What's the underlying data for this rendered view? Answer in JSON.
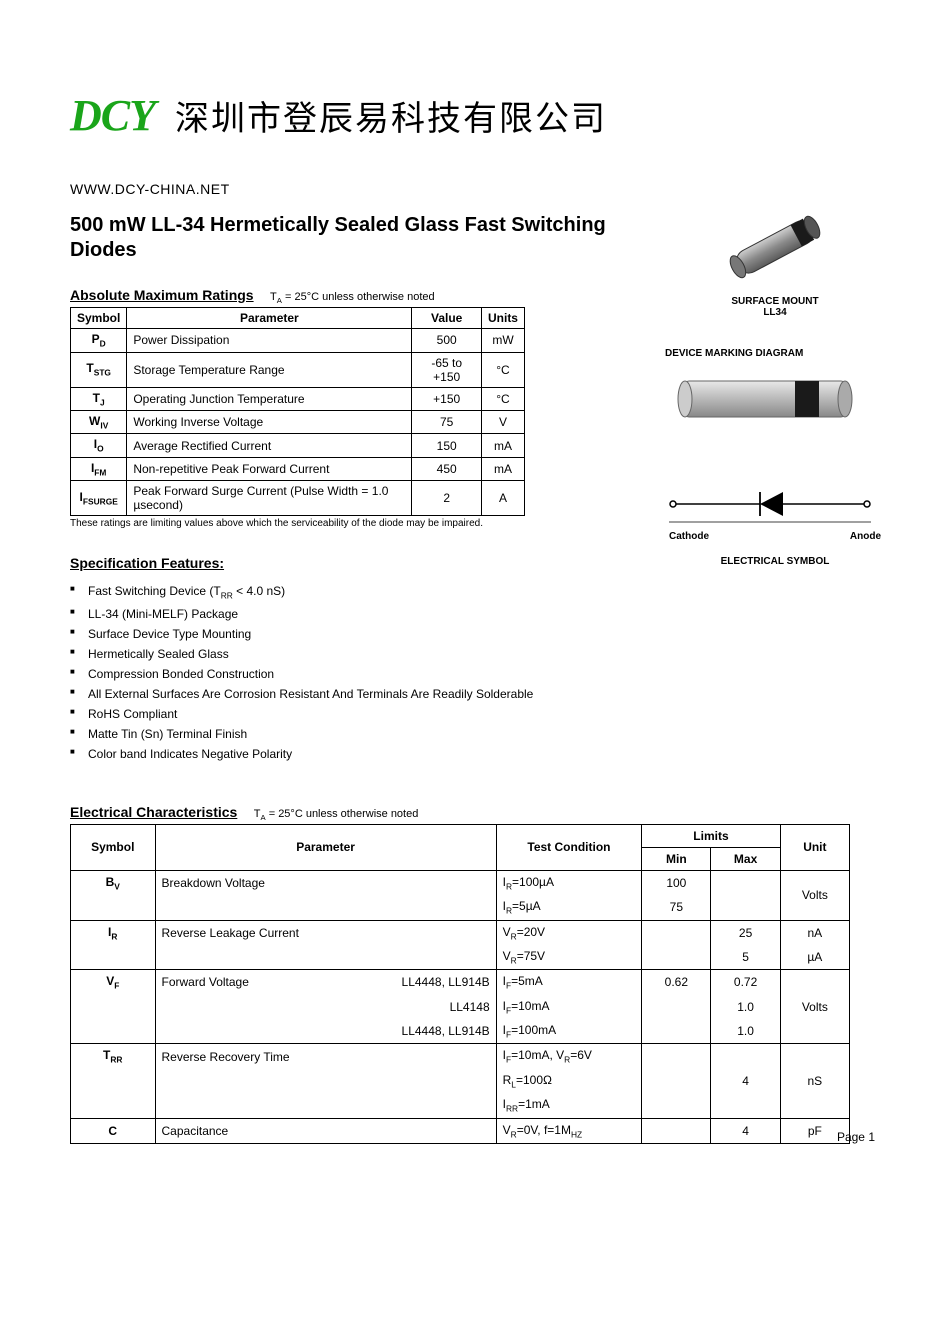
{
  "header": {
    "logo_text": "DCY",
    "logo_color": "#1aa51a",
    "company_cn": "深圳市登辰易科技有限公司",
    "url": "WWW.DCY-CHINA.NET"
  },
  "title": "500 mW LL-34 Hermetically Sealed Glass Fast Switching Diodes",
  "ratings": {
    "heading": "Absolute Maximum Ratings",
    "note": "TA = 25°C unless otherwise noted",
    "columns": [
      "Symbol",
      "Parameter",
      "Value",
      "Units"
    ],
    "rows": [
      {
        "symbol": "PD",
        "symbol_html": "P<sub>D</sub>",
        "parameter": "Power Dissipation",
        "value": "500",
        "units": "mW"
      },
      {
        "symbol": "TSTG",
        "symbol_html": "T<sub>STG</sub>",
        "parameter": "Storage Temperature Range",
        "value": "-65 to +150",
        "units": "°C"
      },
      {
        "symbol": "TJ",
        "symbol_html": "T<sub>J</sub>",
        "parameter": "Operating Junction Temperature",
        "value": "+150",
        "units": "°C"
      },
      {
        "symbol": "WIV",
        "symbol_html": "W<sub>IV</sub>",
        "parameter": "Working Inverse Voltage",
        "value": "75",
        "units": "V"
      },
      {
        "symbol": "IO",
        "symbol_html": "I<sub>O</sub>",
        "parameter": "Average Rectified Current",
        "value": "150",
        "units": "mA"
      },
      {
        "symbol": "IFM",
        "symbol_html": "I<sub>FM</sub>",
        "parameter": "Non-repetitive Peak Forward Current",
        "value": "450",
        "units": "mA"
      },
      {
        "symbol": "IFSURGE",
        "symbol_html": "I<sub>FSURGE</sub>",
        "parameter": "Peak Forward Surge Current (Pulse Width = 1.0 µsecond)",
        "value": "2",
        "units": "A"
      }
    ],
    "footnote": "These ratings are limiting values above which the serviceability of the diode may be impaired."
  },
  "features": {
    "heading": "Specification Features:",
    "items": [
      "Fast Switching Device (TRR < 4.0 nS)",
      "LL-34 (Mini-MELF) Package",
      "Surface Device Type Mounting",
      "Hermetically Sealed Glass",
      "Compression Bonded Construction",
      "All External Surfaces Are Corrosion Resistant And Terminals Are Readily Solderable",
      "RoHS Compliant",
      "Matte Tin (Sn) Terminal Finish",
      "Color band Indicates Negative Polarity"
    ]
  },
  "right": {
    "package_label_line1": "SURFACE MOUNT",
    "package_label_line2": "LL34",
    "marking_heading": "DEVICE MARKING DIAGRAM",
    "cathode_label": "Cathode",
    "anode_label": "Anode",
    "symbol_heading": "ELECTRICAL SYMBOL"
  },
  "elec": {
    "heading": "Electrical Characteristics",
    "note": "TA = 25°C unless otherwise noted",
    "columns": {
      "symbol": "Symbol",
      "parameter": "Parameter",
      "condition": "Test Condition",
      "limits": "Limits",
      "min": "Min",
      "max": "Max",
      "unit": "Unit"
    },
    "groups": [
      {
        "symbol_html": "B<sub>V</sub>",
        "parameter": "Breakdown Voltage",
        "rows": [
          {
            "variant": "",
            "cond_html": "I<sub>R</sub>=100µA",
            "min": "100",
            "max": ""
          },
          {
            "variant": "",
            "cond_html": "I<sub>R</sub>=5µA",
            "min": "75",
            "max": ""
          }
        ],
        "unit": "Volts"
      },
      {
        "symbol_html": "I<sub>R</sub>",
        "parameter": "Reverse Leakage Current",
        "rows": [
          {
            "variant": "",
            "cond_html": "V<sub>R</sub>=20V",
            "min": "",
            "max": "25",
            "unit": "nA"
          },
          {
            "variant": "",
            "cond_html": "V<sub>R</sub>=75V",
            "min": "",
            "max": "5",
            "unit": "µA"
          }
        ]
      },
      {
        "symbol_html": "V<sub>F</sub>",
        "parameter": "Forward Voltage",
        "rows": [
          {
            "variant": "LL4448, LL914B",
            "cond_html": "I<sub>F</sub>=5mA",
            "min": "0.62",
            "max": "0.72"
          },
          {
            "variant": "LL4148",
            "cond_html": "I<sub>F</sub>=10mA",
            "min": "",
            "max": "1.0"
          },
          {
            "variant": "LL4448, LL914B",
            "cond_html": "I<sub>F</sub>=100mA",
            "min": "",
            "max": "1.0"
          }
        ],
        "unit": "Volts"
      },
      {
        "symbol_html": "T<sub>RR</sub>",
        "parameter": "Reverse Recovery Time",
        "rows": [
          {
            "variant": "",
            "cond_html": "I<sub>F</sub>=10mA, V<sub>R</sub>=6V",
            "min": "",
            "max": ""
          },
          {
            "variant": "",
            "cond_html": "R<sub>L</sub>=100Ω",
            "min": "",
            "max": "4"
          },
          {
            "variant": "",
            "cond_html": "I<sub>RR</sub>=1mA",
            "min": "",
            "max": ""
          }
        ],
        "unit": "nS"
      },
      {
        "symbol_html": "C",
        "parameter": "Capacitance",
        "rows": [
          {
            "variant": "",
            "cond_html": "V<sub>R</sub>=0V, f=1M<sub>HZ</sub>",
            "min": "",
            "max": "4"
          }
        ],
        "unit": "pF"
      }
    ]
  },
  "page_num": "Page 1",
  "colors": {
    "text": "#000000",
    "bg": "#ffffff",
    "logo": "#1aa51a",
    "pkg_body": "#9a9a9a",
    "pkg_band": "#2a2a2a",
    "pkg_stroke": "#555555"
  }
}
